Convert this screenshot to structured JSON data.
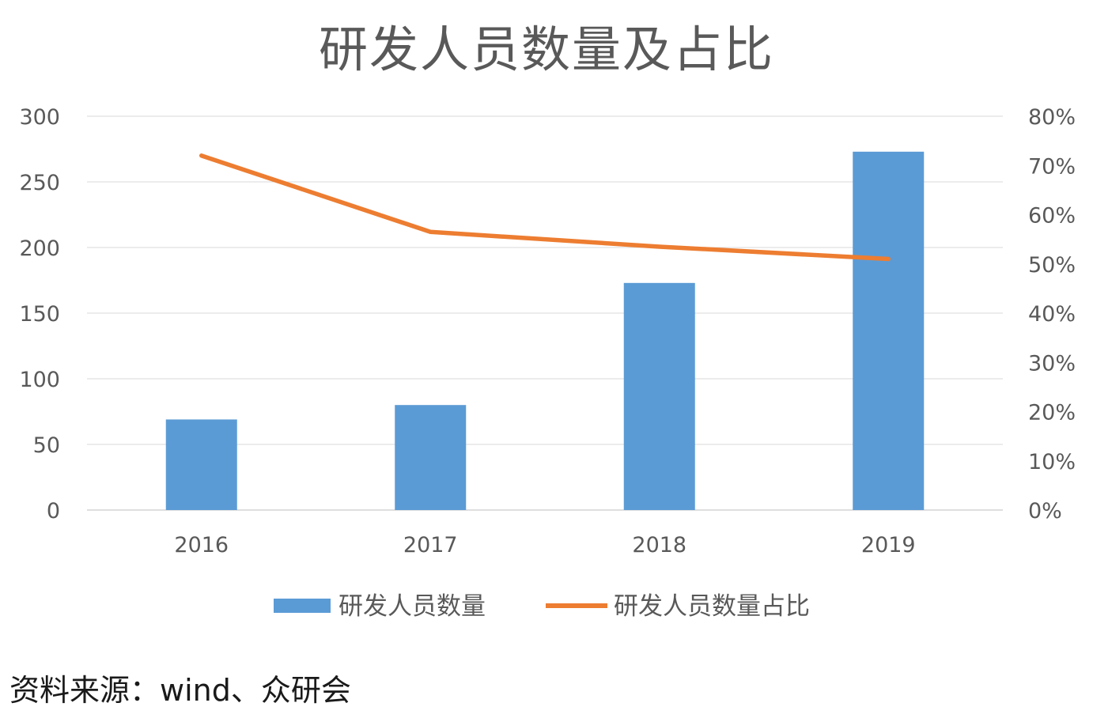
{
  "title": "研发人员数量及占比",
  "source": "资料来源：wind、众研会",
  "chart_data": {
    "type": "bar",
    "categories": [
      "2016",
      "2017",
      "2018",
      "2019"
    ],
    "series": [
      {
        "name": "研发人员数量",
        "type": "bar",
        "axis": "left",
        "values": [
          69,
          80,
          173,
          273
        ],
        "color": "#5b9bd5"
      },
      {
        "name": "研发人员数量占比",
        "type": "line",
        "axis": "right",
        "values": [
          0.72,
          0.565,
          0.535,
          0.51
        ],
        "color": "#ed7d31"
      }
    ],
    "y_left": {
      "min": 0,
      "max": 300,
      "ticks": [
        "0",
        "50",
        "100",
        "150",
        "200",
        "250",
        "300"
      ]
    },
    "y_right": {
      "min": 0,
      "max": 0.8,
      "ticks": [
        "0%",
        "10%",
        "20%",
        "30%",
        "40%",
        "50%",
        "60%",
        "70%",
        "80%"
      ]
    },
    "grid": true,
    "legend": "bottom"
  }
}
